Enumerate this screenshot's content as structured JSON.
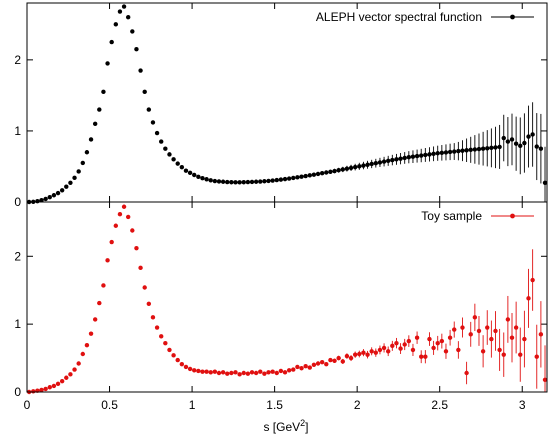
{
  "chart_data": [
    {
      "type": "scatter",
      "panel": "top",
      "xlim": [
        0,
        3.15
      ],
      "ylim": [
        0,
        2.8
      ],
      "y_ticks": [
        0,
        1,
        2
      ],
      "y_tick_labels": [
        "0",
        "1",
        "2"
      ],
      "legend": "top-right",
      "grid": false,
      "series": [
        {
          "name": "ALEPH vector spectral function",
          "color": "#000000",
          "points": [
            [
              0.013,
              0.0
            ],
            [
              0.038,
              0.003
            ],
            [
              0.063,
              0.011
            ],
            [
              0.088,
              0.025
            ],
            [
              0.113,
              0.043
            ],
            [
              0.138,
              0.068
            ],
            [
              0.163,
              0.095
            ],
            [
              0.188,
              0.125
            ],
            [
              0.213,
              0.165
            ],
            [
              0.238,
              0.215
            ],
            [
              0.263,
              0.27
            ],
            [
              0.288,
              0.34
            ],
            [
              0.313,
              0.43
            ],
            [
              0.338,
              0.55
            ],
            [
              0.363,
              0.7
            ],
            [
              0.388,
              0.88
            ],
            [
              0.413,
              1.1
            ],
            [
              0.438,
              1.3
            ],
            [
              0.463,
              1.55
            ],
            [
              0.488,
              1.95
            ],
            [
              0.513,
              2.25
            ],
            [
              0.538,
              2.5
            ],
            [
              0.563,
              2.68
            ],
            [
              0.588,
              2.75
            ],
            [
              0.613,
              2.6
            ],
            [
              0.638,
              2.4
            ],
            [
              0.663,
              2.15
            ],
            [
              0.688,
              1.85
            ],
            [
              0.713,
              1.55
            ],
            [
              0.738,
              1.3
            ],
            [
              0.763,
              1.12
            ],
            [
              0.788,
              0.97
            ],
            [
              0.813,
              0.85
            ],
            [
              0.838,
              0.75
            ],
            [
              0.863,
              0.67
            ],
            [
              0.888,
              0.6
            ],
            [
              0.913,
              0.54
            ],
            [
              0.938,
              0.49
            ],
            [
              0.963,
              0.44
            ],
            [
              0.988,
              0.41
            ],
            [
              1.013,
              0.38
            ],
            [
              1.038,
              0.355
            ],
            [
              1.063,
              0.335
            ],
            [
              1.088,
              0.32
            ],
            [
              1.113,
              0.305
            ],
            [
              1.138,
              0.295
            ],
            [
              1.163,
              0.29
            ],
            [
              1.188,
              0.285
            ],
            [
              1.213,
              0.28
            ],
            [
              1.238,
              0.278
            ],
            [
              1.263,
              0.277
            ],
            [
              1.288,
              0.277
            ],
            [
              1.313,
              0.278
            ],
            [
              1.338,
              0.28
            ],
            [
              1.363,
              0.282
            ],
            [
              1.388,
              0.285
            ],
            [
              1.413,
              0.288
            ],
            [
              1.438,
              0.292
            ],
            [
              1.463,
              0.297
            ],
            [
              1.488,
              0.302
            ],
            [
              1.513,
              0.308
            ],
            [
              1.538,
              0.315
            ],
            [
              1.563,
              0.322
            ],
            [
              1.588,
              0.33
            ],
            [
              1.613,
              0.338
            ],
            [
              1.638,
              0.347
            ],
            [
              1.663,
              0.356
            ],
            [
              1.688,
              0.365
            ],
            [
              1.713,
              0.375
            ],
            [
              1.738,
              0.385
            ],
            [
              1.763,
              0.395
            ],
            [
              1.788,
              0.405
            ],
            [
              1.813,
              0.415
            ],
            [
              1.838,
              0.425
            ],
            [
              1.863,
              0.436
            ],
            [
              1.888,
              0.447
            ],
            [
              1.913,
              0.458
            ],
            [
              1.938,
              0.469
            ],
            [
              1.963,
              0.48
            ],
            [
              1.988,
              0.491
            ],
            [
              2.013,
              0.502
            ],
            [
              2.038,
              0.513
            ],
            [
              2.063,
              0.524
            ],
            [
              2.088,
              0.535
            ],
            [
              2.113,
              0.546
            ],
            [
              2.138,
              0.557
            ],
            [
              2.163,
              0.568
            ],
            [
              2.188,
              0.579
            ],
            [
              2.213,
              0.59
            ],
            [
              2.238,
              0.6
            ],
            [
              2.263,
              0.61
            ],
            [
              2.288,
              0.62
            ],
            [
              2.313,
              0.63
            ],
            [
              2.338,
              0.638
            ],
            [
              2.363,
              0.646
            ],
            [
              2.388,
              0.654
            ],
            [
              2.413,
              0.662
            ],
            [
              2.438,
              0.67
            ],
            [
              2.463,
              0.678
            ],
            [
              2.488,
              0.686
            ],
            [
              2.513,
              0.692
            ],
            [
              2.538,
              0.698
            ],
            [
              2.563,
              0.705
            ],
            [
              2.588,
              0.71
            ],
            [
              2.613,
              0.716
            ],
            [
              2.638,
              0.722
            ],
            [
              2.663,
              0.728
            ],
            [
              2.688,
              0.734
            ],
            [
              2.713,
              0.74
            ],
            [
              2.738,
              0.745
            ],
            [
              2.763,
              0.75
            ],
            [
              2.788,
              0.756
            ],
            [
              2.813,
              0.762
            ],
            [
              2.838,
              0.768
            ],
            [
              2.863,
              0.775
            ],
            [
              2.888,
              0.9
            ],
            [
              2.913,
              0.85
            ],
            [
              2.938,
              0.88
            ],
            [
              2.963,
              0.82
            ],
            [
              2.988,
              0.79
            ],
            [
              3.013,
              0.83
            ],
            [
              3.038,
              0.92
            ],
            [
              3.063,
              0.95
            ],
            [
              3.088,
              0.78
            ],
            [
              3.113,
              0.75
            ],
            [
              3.138,
              0.27
            ]
          ]
        }
      ]
    },
    {
      "type": "scatter",
      "panel": "bottom",
      "xlim": [
        0,
        3.15
      ],
      "ylim": [
        0,
        2.8
      ],
      "x_ticks": [
        0,
        0.5,
        1,
        1.5,
        2,
        2.5,
        3
      ],
      "x_tick_labels": [
        "0",
        "0.5",
        "1",
        "1.5",
        "2",
        "2.5",
        "3"
      ],
      "y_ticks": [
        0,
        1,
        2
      ],
      "y_tick_labels": [
        "0",
        "1",
        "2"
      ],
      "xlabel": "s   [GeV",
      "xlabel_sup": "2",
      "xlabel_end": "]",
      "legend": "top-right",
      "grid": false,
      "series": [
        {
          "name": "Toy sample",
          "color": "#e01010",
          "points": [
            [
              0.013,
              0.0
            ],
            [
              0.038,
              0.01
            ],
            [
              0.063,
              0.02
            ],
            [
              0.088,
              0.03
            ],
            [
              0.113,
              0.045
            ],
            [
              0.138,
              0.07
            ],
            [
              0.163,
              0.09
            ],
            [
              0.188,
              0.12
            ],
            [
              0.213,
              0.16
            ],
            [
              0.238,
              0.21
            ],
            [
              0.263,
              0.26
            ],
            [
              0.288,
              0.33
            ],
            [
              0.313,
              0.42
            ],
            [
              0.338,
              0.56
            ],
            [
              0.363,
              0.69
            ],
            [
              0.388,
              0.86
            ],
            [
              0.413,
              1.07
            ],
            [
              0.438,
              1.31
            ],
            [
              0.463,
              1.57
            ],
            [
              0.488,
              1.94
            ],
            [
              0.513,
              2.21
            ],
            [
              0.538,
              2.45
            ],
            [
              0.563,
              2.62
            ],
            [
              0.588,
              2.73
            ],
            [
              0.613,
              2.58
            ],
            [
              0.638,
              2.38
            ],
            [
              0.663,
              2.12
            ],
            [
              0.688,
              1.83
            ],
            [
              0.713,
              1.54
            ],
            [
              0.738,
              1.3
            ],
            [
              0.763,
              1.1
            ],
            [
              0.788,
              0.95
            ],
            [
              0.813,
              0.82
            ],
            [
              0.838,
              0.72
            ],
            [
              0.863,
              0.62
            ],
            [
              0.888,
              0.54
            ],
            [
              0.913,
              0.47
            ],
            [
              0.938,
              0.41
            ],
            [
              0.963,
              0.37
            ],
            [
              0.988,
              0.34
            ],
            [
              1.013,
              0.32
            ],
            [
              1.038,
              0.31
            ],
            [
              1.063,
              0.3
            ],
            [
              1.088,
              0.3
            ],
            [
              1.113,
              0.29
            ],
            [
              1.138,
              0.3
            ],
            [
              1.163,
              0.28
            ],
            [
              1.188,
              0.29
            ],
            [
              1.213,
              0.27
            ],
            [
              1.238,
              0.28
            ],
            [
              1.263,
              0.29
            ],
            [
              1.288,
              0.26
            ],
            [
              1.313,
              0.28
            ],
            [
              1.338,
              0.27
            ],
            [
              1.363,
              0.29
            ],
            [
              1.388,
              0.28
            ],
            [
              1.413,
              0.3
            ],
            [
              1.438,
              0.27
            ],
            [
              1.463,
              0.29
            ],
            [
              1.488,
              0.3
            ],
            [
              1.513,
              0.28
            ],
            [
              1.538,
              0.31
            ],
            [
              1.563,
              0.29
            ],
            [
              1.588,
              0.32
            ],
            [
              1.613,
              0.33
            ],
            [
              1.638,
              0.37
            ],
            [
              1.663,
              0.35
            ],
            [
              1.688,
              0.38
            ],
            [
              1.713,
              0.36
            ],
            [
              1.738,
              0.4
            ],
            [
              1.763,
              0.42
            ],
            [
              1.788,
              0.44
            ],
            [
              1.813,
              0.41
            ],
            [
              1.838,
              0.47
            ],
            [
              1.863,
              0.46
            ],
            [
              1.888,
              0.5
            ],
            [
              1.913,
              0.45
            ],
            [
              1.938,
              0.53
            ],
            [
              1.963,
              0.5
            ],
            [
              1.988,
              0.55
            ],
            [
              2.013,
              0.56
            ],
            [
              2.038,
              0.58
            ],
            [
              2.063,
              0.55
            ],
            [
              2.088,
              0.6
            ],
            [
              2.113,
              0.58
            ],
            [
              2.138,
              0.62
            ],
            [
              2.163,
              0.65
            ],
            [
              2.188,
              0.6
            ],
            [
              2.213,
              0.68
            ],
            [
              2.238,
              0.72
            ],
            [
              2.263,
              0.64
            ],
            [
              2.288,
              0.7
            ],
            [
              2.313,
              0.75
            ],
            [
              2.338,
              0.62
            ],
            [
              2.363,
              0.8
            ],
            [
              2.388,
              0.52
            ],
            [
              2.413,
              0.52
            ],
            [
              2.438,
              0.78
            ],
            [
              2.463,
              0.65
            ],
            [
              2.488,
              0.72
            ],
            [
              2.513,
              0.75
            ],
            [
              2.538,
              0.6
            ],
            [
              2.563,
              0.8
            ],
            [
              2.588,
              0.92
            ],
            [
              2.613,
              0.62
            ],
            [
              2.638,
              0.95
            ],
            [
              2.663,
              0.28
            ],
            [
              2.688,
              0.85
            ],
            [
              2.713,
              1.1
            ],
            [
              2.738,
              0.9
            ],
            [
              2.763,
              0.6
            ],
            [
              2.788,
              0.95
            ],
            [
              2.813,
              0.78
            ],
            [
              2.838,
              0.9
            ],
            [
              2.863,
              0.62
            ],
            [
              2.888,
              0.55
            ],
            [
              2.913,
              1.07
            ],
            [
              2.938,
              0.8
            ],
            [
              2.963,
              0.95
            ],
            [
              2.988,
              0.55
            ],
            [
              3.013,
              0.78
            ],
            [
              3.038,
              1.38
            ],
            [
              3.063,
              1.65
            ],
            [
              3.088,
              0.52
            ],
            [
              3.113,
              0.85
            ],
            [
              3.138,
              0.18
            ]
          ]
        }
      ]
    }
  ]
}
